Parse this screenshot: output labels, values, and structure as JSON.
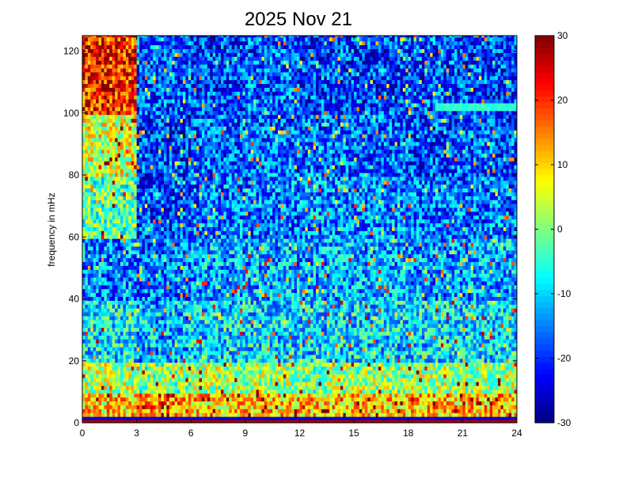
{
  "chart_data": {
    "type": "heatmap",
    "title": "2025 Nov 21",
    "xlabel": "",
    "ylabel": "frequency in mHz",
    "xlim": [
      0,
      24
    ],
    "ylim": [
      0,
      125
    ],
    "xticks": [
      "0",
      "3",
      "6",
      "9",
      "12",
      "15",
      "18",
      "21",
      "24"
    ],
    "yticks": [
      "0",
      "20",
      "40",
      "60",
      "80",
      "100",
      "120"
    ],
    "colorbar": {
      "range": [
        -30,
        30
      ],
      "ticks": [
        "-30",
        "-20",
        "-10",
        "0",
        "10",
        "20",
        "30"
      ],
      "colormap": "jet"
    },
    "grid": false,
    "value_grid": {
      "description_axis_x_hours": [
        0,
        3,
        6,
        9,
        12,
        15,
        18,
        21
      ],
      "freq_bands_mHz": [
        [
          0,
          1
        ],
        [
          1,
          2
        ],
        [
          2,
          10
        ],
        [
          10,
          20
        ],
        [
          20,
          40
        ],
        [
          40,
          60
        ],
        [
          60,
          80
        ],
        [
          80,
          100
        ],
        [
          100,
          125
        ]
      ],
      "values_dB": [
        [
          28,
          28,
          28,
          28,
          28,
          28,
          28,
          28
        ],
        [
          -25,
          -25,
          -25,
          -25,
          -25,
          -25,
          -25,
          -25
        ],
        [
          10,
          14,
          10,
          10,
          10,
          10,
          11,
          11
        ],
        [
          3,
          0,
          2,
          2,
          1,
          1,
          2,
          2
        ],
        [
          -8,
          -12,
          -9,
          -9,
          -9,
          -9,
          -9,
          -9
        ],
        [
          -14,
          -16,
          -12,
          -12,
          -12,
          -12,
          -13,
          -12
        ],
        [
          -2,
          -18,
          -15,
          -15,
          -14,
          -14,
          -16,
          -16
        ],
        [
          5,
          -19,
          -17,
          -16,
          -16,
          -17,
          -18,
          -18
        ],
        [
          20,
          -17,
          -19,
          -17,
          -19,
          -19,
          -18,
          -19
        ]
      ]
    },
    "annotations": [
      {
        "type": "narrowband-line",
        "frequency_mHz": 102,
        "hours": [
          19.5,
          24
        ],
        "value_dB": -5
      }
    ]
  }
}
